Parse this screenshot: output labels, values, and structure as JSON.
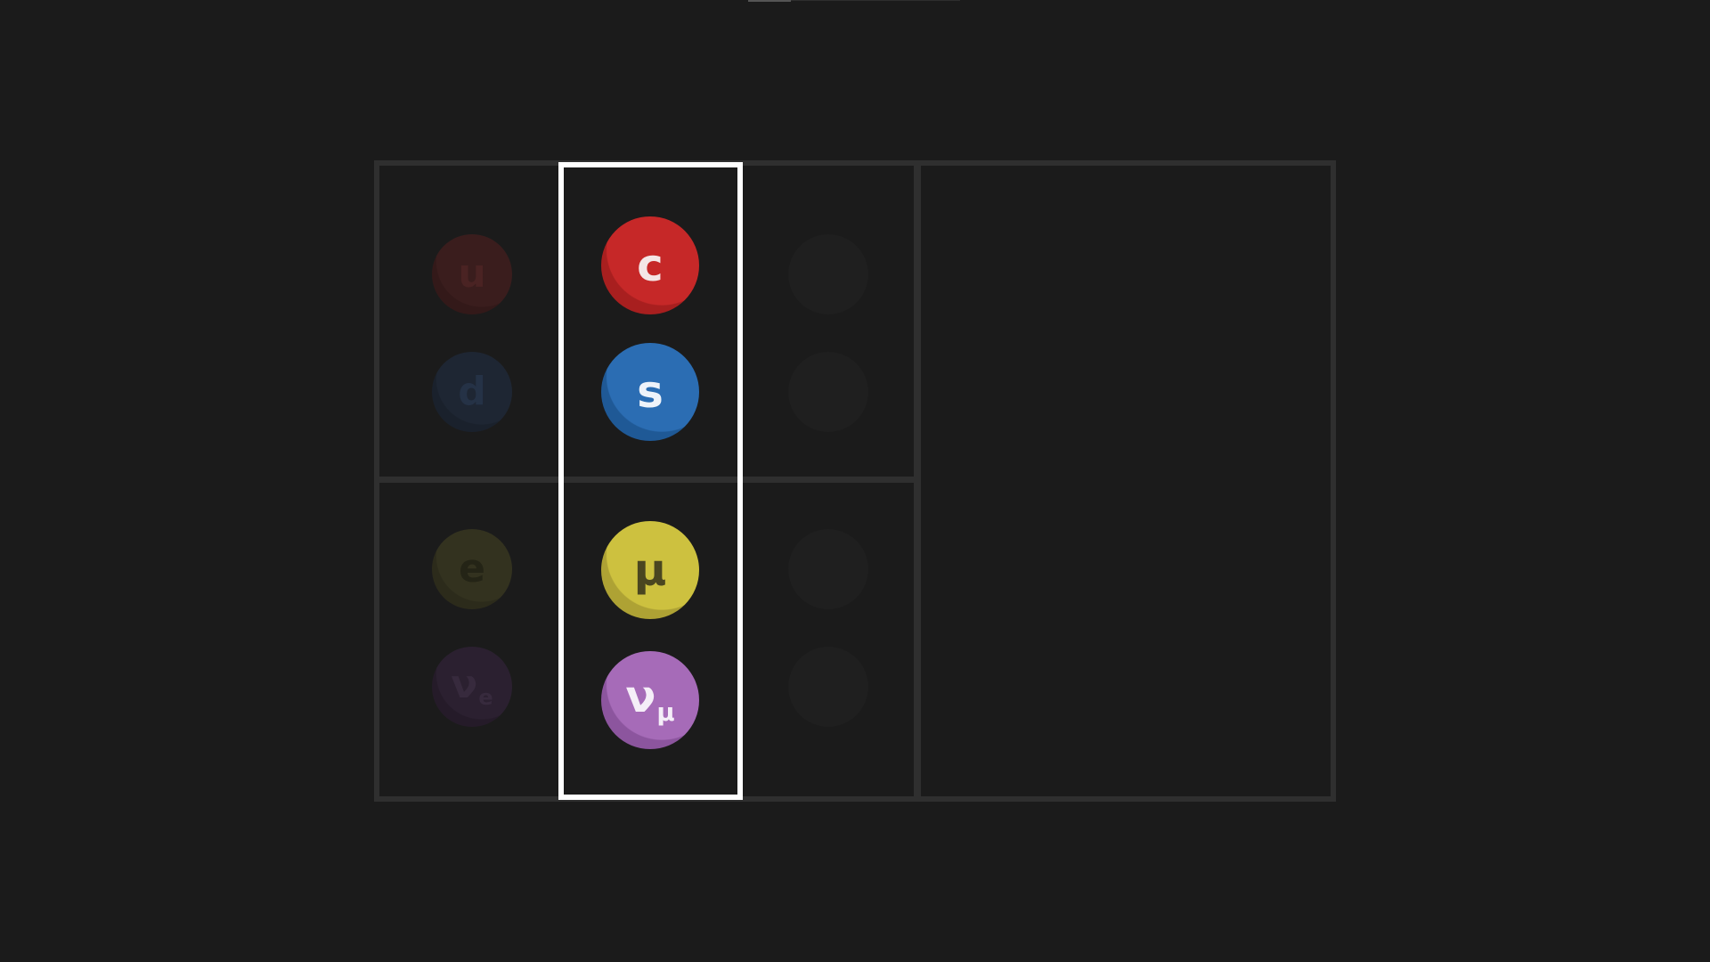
{
  "colors": {
    "background": "#1b1b1b",
    "grid": "#2f2f2f",
    "highlight": "#ffffff"
  },
  "particles": {
    "first": {
      "up": {
        "symbol": "u",
        "fill": "#3a1d1d",
        "shade": "#331919",
        "text": "#4a2323"
      },
      "down": {
        "symbol": "d",
        "fill": "#1e2633",
        "shade": "#1a212c",
        "text": "#253246"
      },
      "electron": {
        "symbol": "e",
        "fill": "#33321f",
        "shade": "#2c2b1b",
        "text": "#242416"
      },
      "electron_neutrino": {
        "symbol": "ν",
        "sub": "e",
        "fill": "#2b2030",
        "shade": "#251b29",
        "text": "#372a3d"
      }
    },
    "second": {
      "charm": {
        "symbol": "c",
        "fill": "#c62828",
        "shade": "#a81f1f",
        "text": "#f4e6e6"
      },
      "strange": {
        "symbol": "s",
        "fill": "#2b6db3",
        "shade": "#1f5996",
        "text": "#eef3fa"
      },
      "muon": {
        "symbol": "μ",
        "fill": "#cdc13f",
        "shade": "#aea234",
        "text": "#4a4620"
      },
      "muon_neutrino": {
        "symbol": "ν",
        "sub": "μ",
        "fill": "#a66bb8",
        "shade": "#8c559e",
        "text": "#f5eef8"
      }
    },
    "third": {
      "empty_fill": "#1f1f1f"
    }
  }
}
